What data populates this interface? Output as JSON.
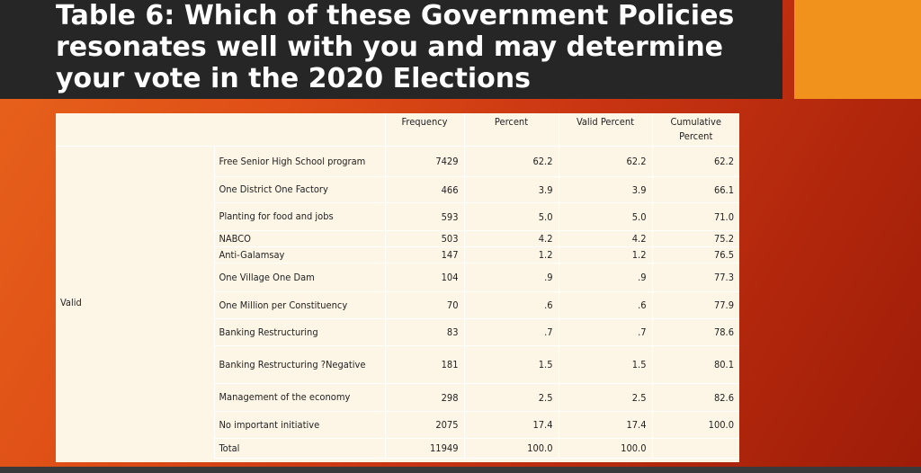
{
  "title": "Table 6: Which of these Government Policies resonates well with you and may determine your vote in the 2020 Elections",
  "colors": {
    "title_bg": "#262626",
    "accent": "#f0921c",
    "slide_start": "#e8641c",
    "slide_end": "#9e1c08",
    "table_bg": "#fdf6e6"
  },
  "table": {
    "columns": [
      "Frequency",
      "Percent",
      "Valid Percent",
      "Cumulative Percent"
    ],
    "group_label": "Valid",
    "rows": [
      {
        "label": "Free Senior High School program",
        "frequency": "7429",
        "percent": "62.2",
        "valid_percent": "62.2",
        "cumulative": "62.2"
      },
      {
        "label": "One District One Factory",
        "frequency": "466",
        "percent": "3.9",
        "valid_percent": "3.9",
        "cumulative": "66.1"
      },
      {
        "label": "Planting for food and jobs",
        "frequency": "593",
        "percent": "5.0",
        "valid_percent": "5.0",
        "cumulative": "71.0"
      },
      {
        "label": "NABCO",
        "frequency": "503",
        "percent": "4.2",
        "valid_percent": "4.2",
        "cumulative": "75.2"
      },
      {
        "label": "Anti-Galamsay",
        "frequency": "147",
        "percent": "1.2",
        "valid_percent": "1.2",
        "cumulative": "76.5"
      },
      {
        "label": "One Village One Dam",
        "frequency": "104",
        "percent": ".9",
        "valid_percent": ".9",
        "cumulative": "77.3"
      },
      {
        "label": "One Million per Constituency",
        "frequency": "70",
        "percent": ".6",
        "valid_percent": ".6",
        "cumulative": "77.9"
      },
      {
        "label": "Banking Restructuring",
        "frequency": "83",
        "percent": ".7",
        "valid_percent": ".7",
        "cumulative": "78.6"
      },
      {
        "label": "Banking Restructuring ?Negative",
        "frequency": "181",
        "percent": "1.5",
        "valid_percent": "1.5",
        "cumulative": "80.1"
      },
      {
        "label": "Management of the economy",
        "frequency": "298",
        "percent": "2.5",
        "valid_percent": "2.5",
        "cumulative": "82.6"
      },
      {
        "label": "No important initiative",
        "frequency": "2075",
        "percent": "17.4",
        "valid_percent": "17.4",
        "cumulative": "100.0"
      },
      {
        "label": "Total",
        "frequency": "11949",
        "percent": "100.0",
        "valid_percent": "100.0",
        "cumulative": ""
      }
    ]
  }
}
